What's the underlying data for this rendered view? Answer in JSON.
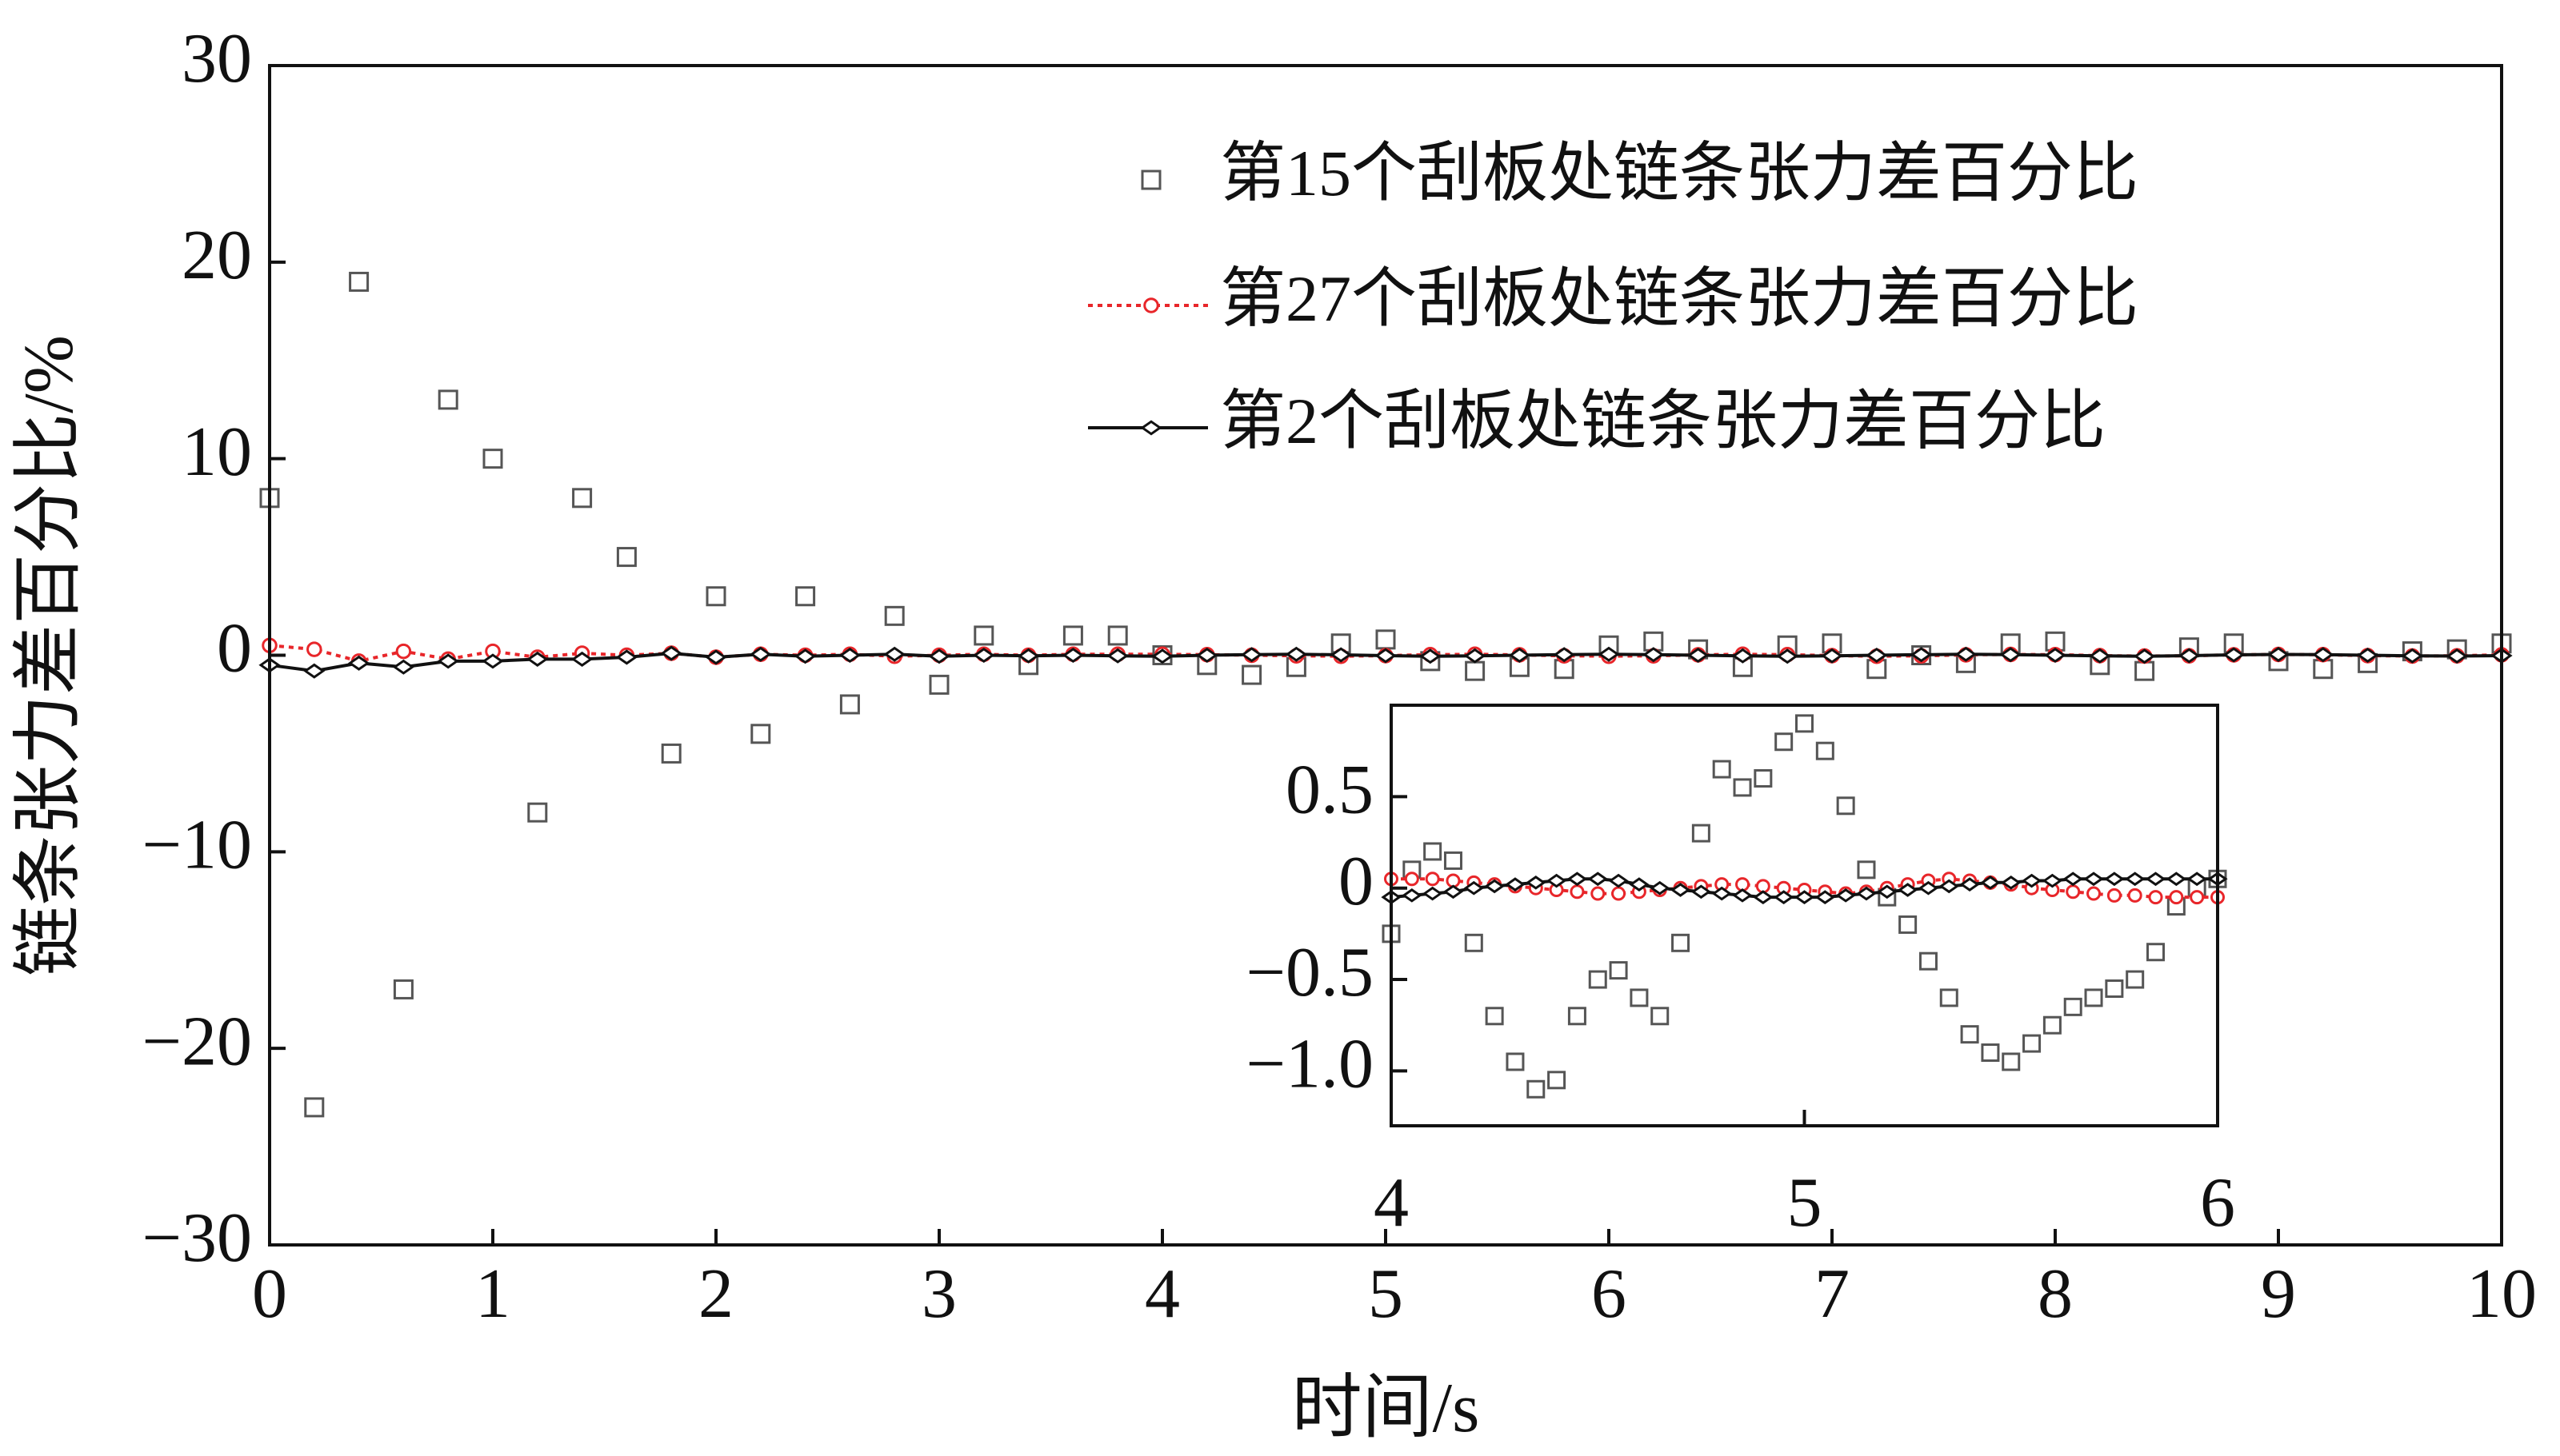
{
  "chart_data": [
    {
      "type": "line",
      "x_label": "时间/s",
      "y_label": "链条张力差百分比/%",
      "xlim": [
        0,
        10
      ],
      "ylim": [
        -30,
        30
      ],
      "xticks": [
        0,
        1,
        2,
        3,
        4,
        5,
        6,
        7,
        8,
        9,
        10
      ],
      "yticks": [
        {
          "value": -30,
          "label": "−30"
        },
        {
          "value": -20,
          "label": "−20"
        },
        {
          "value": -10,
          "label": "−10"
        },
        0,
        10,
        20,
        30
      ],
      "legend": "upper right",
      "x": [
        0,
        0.2,
        0.4,
        0.6,
        0.8,
        1,
        1.2,
        1.4,
        1.6,
        1.8,
        2,
        2.2,
        2.4,
        2.6,
        2.8,
        3,
        3.2,
        3.4,
        3.6,
        3.8,
        4,
        4.2,
        4.4,
        4.6,
        4.8,
        5,
        5.2,
        5.4,
        5.6,
        5.8,
        6,
        6.2,
        6.4,
        6.6,
        6.8,
        7,
        7.2,
        7.4,
        7.6,
        7.8,
        8,
        8.2,
        8.4,
        8.6,
        8.8,
        9,
        9.2,
        9.4,
        9.6,
        9.8,
        10
      ],
      "series": [
        {
          "name": "第15个刮板处链条张力差百分比",
          "color": "#555555",
          "marker": "square",
          "line": "none",
          "values": [
            8,
            -23,
            19,
            -17,
            13,
            10,
            -8,
            8,
            5,
            -5,
            3,
            -4,
            3,
            -2.5,
            2,
            -1.5,
            1,
            -0.5,
            1,
            1,
            0,
            -0.5,
            -1,
            -0.6,
            0.6,
            0.8,
            -0.3,
            -0.8,
            -0.6,
            -0.7,
            0.5,
            0.7,
            0.3,
            -0.6,
            0.5,
            0.6,
            -0.7,
            0,
            -0.4,
            0.6,
            0.7,
            -0.5,
            -0.8,
            0.4,
            0.6,
            -0.3,
            -0.7,
            -0.4,
            0.2,
            0.3,
            0.6
          ]
        },
        {
          "name": "第27个刮板处链条张力差百分比",
          "color": "#e8262a",
          "marker": "circle",
          "line": "dotted",
          "values": [
            0.5,
            0.3,
            -0.3,
            0.2,
            -0.2,
            0.2,
            -0.1,
            0.1,
            0,
            0.1,
            -0.1,
            0.05,
            0,
            0.05,
            -0.05,
            0,
            0.05,
            0,
            0.05,
            0.05,
            0.05,
            0.03,
            0,
            -0.03,
            -0.05,
            -0.02,
            0.03,
            0.05,
            0.02,
            -0.03,
            -0.05,
            -0.03,
            0.02,
            0.05,
            0.03,
            -0.02,
            -0.05,
            -0.03,
            0.02,
            0.04,
            0.03,
            -0.02,
            -0.04,
            -0.03,
            0.02,
            0.04,
            0.03,
            -0.02,
            -0.04,
            -0.03,
            0.02
          ]
        },
        {
          "name": "第2个刮板处链条张力差百分比",
          "color": "#111111",
          "marker": "diamond",
          "line": "solid",
          "values": [
            -0.5,
            -0.8,
            -0.4,
            -0.6,
            -0.3,
            -0.3,
            -0.2,
            -0.2,
            -0.1,
            0.1,
            -0.1,
            0.05,
            -0.05,
            0,
            0.05,
            -0.05,
            0,
            -0.03,
            0,
            -0.03,
            -0.05,
            0,
            0.03,
            0.05,
            0.02,
            -0.02,
            -0.05,
            -0.03,
            0,
            0.03,
            0.05,
            0.03,
            0,
            -0.03,
            -0.05,
            -0.03,
            0,
            0.03,
            0.05,
            0.03,
            0,
            -0.03,
            -0.05,
            -0.02,
            0.02,
            0.04,
            0.03,
            0,
            -0.03,
            -0.04,
            -0.02
          ]
        }
      ]
    },
    {
      "type": "line",
      "xlim": [
        4,
        6
      ],
      "ylim": [
        -1.3,
        1.0
      ],
      "xticks": [
        4,
        5,
        6
      ],
      "yticks": [
        {
          "value": -1,
          "label": "−1.0"
        },
        {
          "value": -0.5,
          "label": "−0.5"
        },
        0,
        0.5
      ],
      "x": [
        4,
        4.05,
        4.1,
        4.15,
        4.2,
        4.25,
        4.3,
        4.35,
        4.4,
        4.45,
        4.5,
        4.55,
        4.6,
        4.65,
        4.7,
        4.75,
        4.8,
        4.85,
        4.9,
        4.95,
        5,
        5.05,
        5.1,
        5.15,
        5.2,
        5.25,
        5.3,
        5.35,
        5.4,
        5.45,
        5.5,
        5.55,
        5.6,
        5.65,
        5.7,
        5.75,
        5.8,
        5.85,
        5.9,
        5.95,
        6
      ],
      "series": [
        {
          "color": "#555555",
          "marker": "square",
          "line": "none",
          "values": [
            -0.25,
            0.1,
            0.2,
            0.15,
            -0.3,
            -0.7,
            -0.95,
            -1.1,
            -1.05,
            -0.7,
            -0.5,
            -0.45,
            -0.6,
            -0.7,
            -0.3,
            0.3,
            0.65,
            0.55,
            0.6,
            0.8,
            0.9,
            0.75,
            0.45,
            0.1,
            -0.05,
            -0.2,
            -0.4,
            -0.6,
            -0.8,
            -0.9,
            -0.95,
            -0.85,
            -0.75,
            -0.65,
            -0.6,
            -0.55,
            -0.5,
            -0.35,
            -0.1,
            0,
            0.05
          ]
        },
        {
          "color": "#e8262a",
          "marker": "circle",
          "line": "dotted",
          "values": [
            0.05,
            0.05,
            0.05,
            0.04,
            0.03,
            0.02,
            0.01,
            0,
            -0.01,
            -0.02,
            -0.03,
            -0.03,
            -0.02,
            -0.01,
            0,
            0.01,
            0.02,
            0.02,
            0.01,
            0,
            -0.01,
            -0.02,
            -0.03,
            -0.02,
            0,
            0.02,
            0.04,
            0.05,
            0.04,
            0.03,
            0.02,
            0,
            -0.01,
            -0.02,
            -0.03,
            -0.04,
            -0.04,
            -0.05,
            -0.05,
            -0.05,
            -0.05
          ]
        },
        {
          "color": "#111111",
          "marker": "diamond",
          "line": "solid",
          "values": [
            -0.05,
            -0.04,
            -0.03,
            -0.02,
            0,
            0.01,
            0.02,
            0.03,
            0.04,
            0.05,
            0.05,
            0.04,
            0.02,
            0,
            -0.01,
            -0.02,
            -0.03,
            -0.04,
            -0.05,
            -0.05,
            -0.05,
            -0.05,
            -0.04,
            -0.03,
            -0.02,
            -0.01,
            0,
            0.01,
            0.02,
            0.03,
            0.03,
            0.04,
            0.04,
            0.05,
            0.05,
            0.05,
            0.05,
            0.05,
            0.05,
            0.05,
            0.05
          ]
        }
      ]
    }
  ]
}
